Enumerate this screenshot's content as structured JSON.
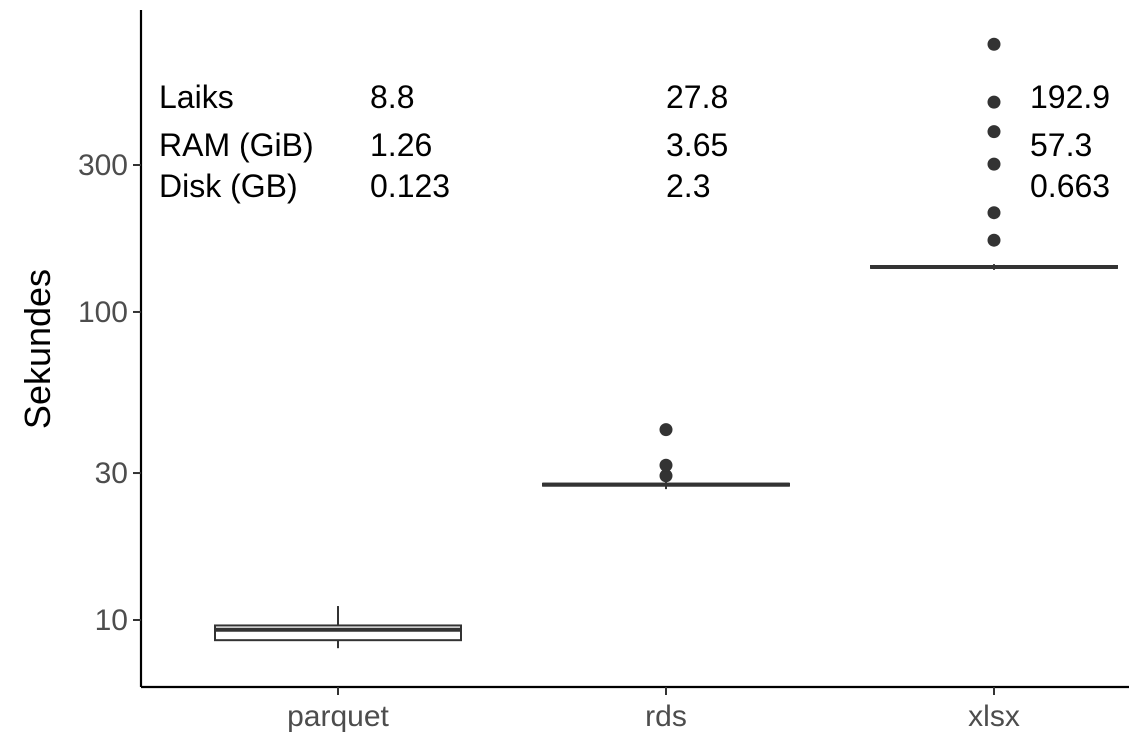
{
  "chart_data": {
    "type": "boxplot",
    "ylabel": "Sekundes",
    "xlabel": "",
    "yscale": "log10",
    "ylim": [
      5.8,
      720
    ],
    "yticks": [
      10,
      30,
      100,
      300
    ],
    "grid": false,
    "categories": [
      "parquet",
      "rds",
      "xlsx"
    ],
    "boxes": [
      {
        "category": "parquet",
        "whisker_low": 8.1,
        "q1": 8.6,
        "median": 9.3,
        "q3": 9.6,
        "whisker_high": 11.1,
        "outliers": []
      },
      {
        "category": "rds",
        "whisker_low": 26.6,
        "q1": 27.3,
        "median": 27.5,
        "q3": 27.7,
        "whisker_high": 28.6,
        "outliers": [
          29.4,
          31.8,
          41.5
        ]
      },
      {
        "category": "xlsx",
        "whisker_low": 137,
        "q1": 139,
        "median": 140,
        "q3": 141,
        "whisker_high": 143,
        "outliers": [
          171,
          210,
          302,
          385,
          480,
          740
        ]
      }
    ],
    "annotation_table": {
      "rows": [
        {
          "label": "Laiks",
          "values": [
            "8.8",
            "27.8",
            "192.9"
          ]
        },
        {
          "label": "RAM (GiB)",
          "values": [
            "1.26",
            "3.65",
            "57.3"
          ]
        },
        {
          "label": "Disk (GB)",
          "values": [
            "0.123",
            "2.3",
            "0.663"
          ]
        }
      ]
    }
  }
}
